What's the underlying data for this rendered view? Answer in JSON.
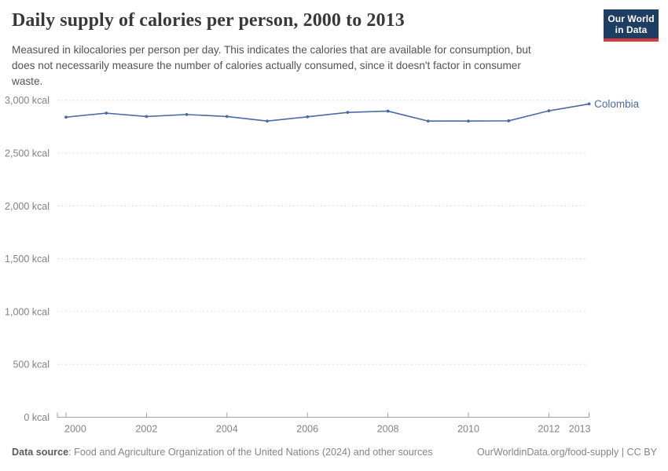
{
  "header": {
    "title": "Daily supply of calories per person, 2000 to 2013",
    "subtitle": "Measured in kilocalories per person per day. This indicates the calories that are available for consumption, but\ndoes not necessarily measure the number of calories actually consumed, since it doesn't factor in consumer\nwaste.",
    "logo": {
      "line1": "Our World",
      "line2": "in Data",
      "background_color": "#1d3d63",
      "bar_color": "#d73c3c"
    }
  },
  "chart_data": {
    "type": "line",
    "title": "Daily supply of calories per person, 2000 to 2013",
    "x": [
      2000,
      2001,
      2002,
      2003,
      2004,
      2005,
      2006,
      2007,
      2008,
      2009,
      2010,
      2011,
      2012,
      2013
    ],
    "series": [
      {
        "name": "Colombia",
        "color": "#4b6ba5",
        "values": [
          2840,
          2878,
          2846,
          2865,
          2846,
          2803,
          2843,
          2885,
          2897,
          2803,
          2803,
          2805,
          2900,
          2965
        ]
      }
    ],
    "xlim": [
      2000,
      2013
    ],
    "ylim": [
      0,
      3000
    ],
    "x_ticks": [
      2000,
      2002,
      2004,
      2006,
      2008,
      2010,
      2012,
      2013
    ],
    "x_tick_labels": [
      "2000",
      "2002",
      "2004",
      "2006",
      "2008",
      "2010",
      "2012",
      "2013"
    ],
    "y_ticks": [
      0,
      500,
      1000,
      1500,
      2000,
      2500,
      3000
    ],
    "y_tick_labels": [
      "0 kcal",
      "500 kcal",
      "1,000 kcal",
      "1,500 kcal",
      "2,000 kcal",
      "2,500 kcal",
      "3,000 kcal"
    ],
    "grid": true,
    "legend_position": "end-of-line",
    "ylabel": "",
    "xlabel": ""
  },
  "footer": {
    "source_label": "Data source",
    "separator": ": ",
    "source_text": "Food and Agriculture Organization of the United Nations (2024) and other sources",
    "attribution": "OurWorldinData.org/food-supply | CC BY"
  }
}
